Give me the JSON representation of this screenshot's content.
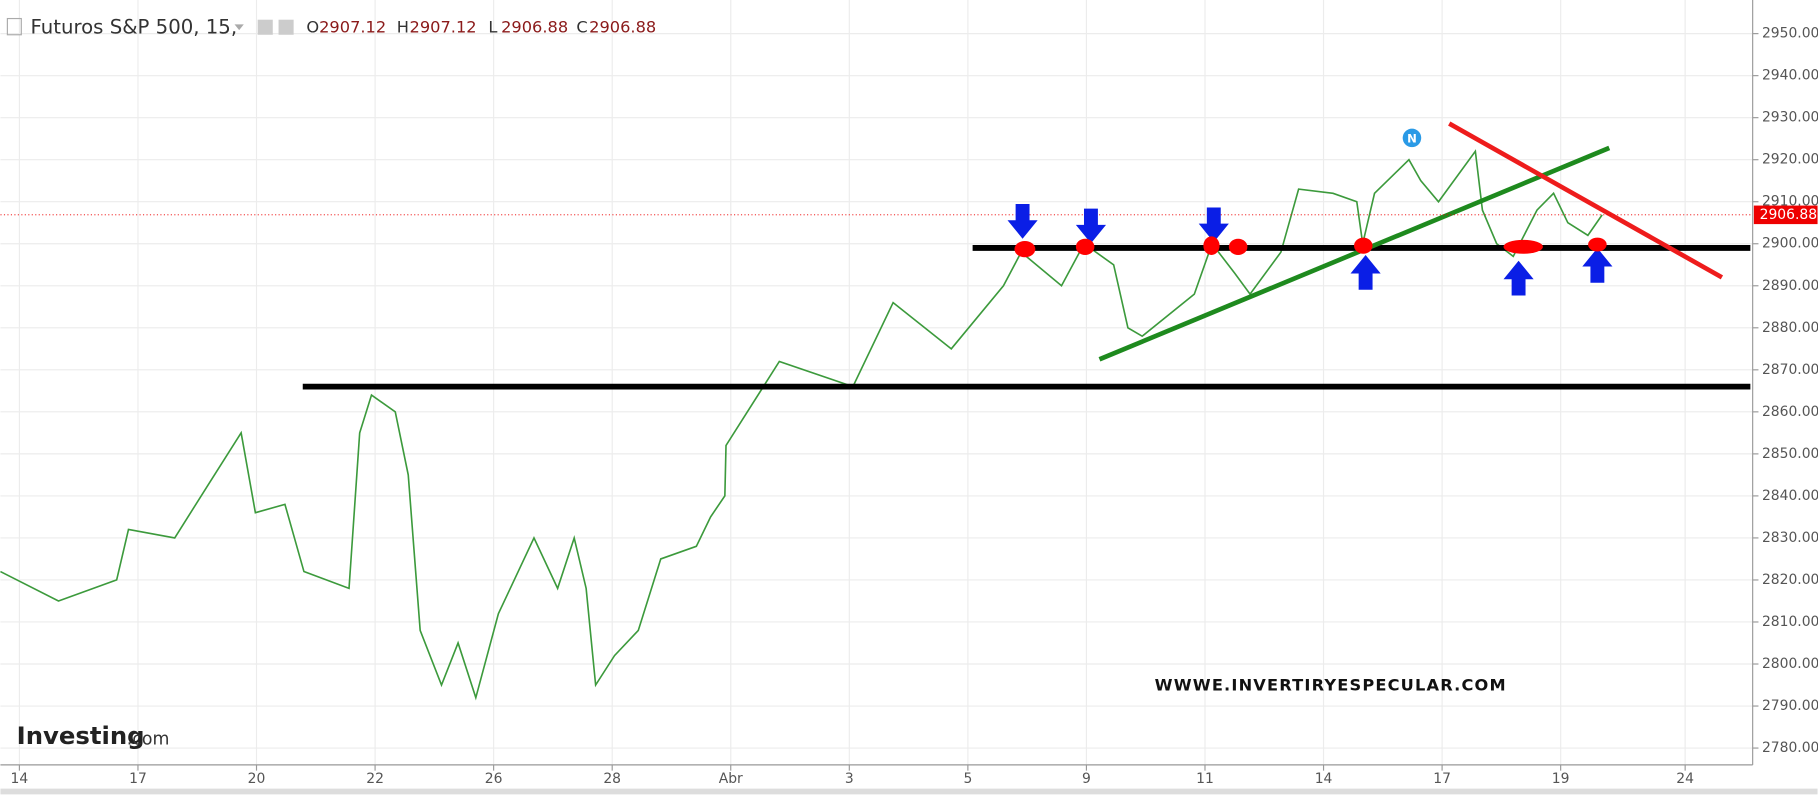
{
  "chart_data": {
    "type": "line",
    "title": "Futuros S&P 500, 15,",
    "ohlc": [
      {
        "label": "O",
        "value": 2907.12
      },
      {
        "label": "H",
        "value": 2907.12
      },
      {
        "label": "L",
        "value": 2906.88
      },
      {
        "label": "C",
        "value": 2906.88
      }
    ],
    "last_price": 2906.88,
    "watermark": "WWWE.INVERTIRYESPECULAR.COM",
    "logo": "Investing",
    "logo_suffix": ".com",
    "color": "#3c9a3c",
    "x": [
      -0.16,
      0.33,
      0.82,
      0.92,
      1.31,
      1.6,
      1.87,
      1.99,
      2.24,
      2.4,
      2.78,
      2.87,
      2.97,
      3.17,
      3.28,
      3.38,
      3.56,
      3.7,
      3.85,
      4.04,
      4.34,
      4.54,
      4.68,
      4.78,
      4.86,
      5.02,
      5.22,
      5.41,
      5.71,
      5.83,
      5.95,
      5.96,
      6.41,
      7.03,
      7.37,
      7.86,
      8.3,
      8.45,
      8.79,
      8.98,
      9.23,
      9.35,
      9.47,
      9.91,
      10.06,
      10.25,
      10.38,
      10.64,
      10.79,
      11.08,
      11.28,
      11.33,
      11.43,
      11.72,
      11.82,
      11.97,
      12.28,
      12.34,
      12.46,
      12.6,
      12.8,
      12.94,
      13.06,
      13.23,
      13.35
    ],
    "values": [
      2822,
      2815,
      2820,
      2832,
      2830,
      2843,
      2855,
      2836,
      2838,
      2822,
      2818,
      2855,
      2864,
      2860,
      2845,
      2808,
      2795,
      2805,
      2792,
      2812,
      2830,
      2818,
      2830,
      2818,
      2795,
      2802,
      2808,
      2825,
      2828,
      2835,
      2840,
      2852,
      2872,
      2866,
      2886,
      2875,
      2890,
      2898,
      2890,
      2900,
      2895,
      2880,
      2878,
      2888,
      2900,
      2893,
      2888,
      2898,
      2913,
      2912,
      2910,
      2900,
      2912,
      2920,
      2915,
      2910,
      2922,
      2908,
      2900,
      2897,
      2908,
      2912,
      2905,
      2902,
      2906.88
    ],
    "xlim": [
      -0.16,
      14.6
    ],
    "ylim": [
      2776,
      2958
    ],
    "xticks": [
      {
        "value": 0,
        "label": "14"
      },
      {
        "value": 1,
        "label": "17"
      },
      {
        "value": 2,
        "label": "20"
      },
      {
        "value": 3,
        "label": "22"
      },
      {
        "value": 4,
        "label": "26"
      },
      {
        "value": 5,
        "label": "28"
      },
      {
        "value": 6,
        "label": "Abr"
      },
      {
        "value": 7,
        "label": "3"
      },
      {
        "value": 8,
        "label": "5"
      },
      {
        "value": 9,
        "label": "9"
      },
      {
        "value": 10,
        "label": "11"
      },
      {
        "value": 11,
        "label": "14"
      },
      {
        "value": 12,
        "label": "17"
      },
      {
        "value": 13,
        "label": "19"
      },
      {
        "value": 14.05,
        "label": "24"
      }
    ],
    "yticks": [
      {
        "value": 2780,
        "label": "2780.00"
      },
      {
        "value": 2790,
        "label": "2790.00"
      },
      {
        "value": 2800,
        "label": "2800.00"
      },
      {
        "value": 2810,
        "label": "2810.00"
      },
      {
        "value": 2820,
        "label": "2820.00"
      },
      {
        "value": 2830,
        "label": "2830.00"
      },
      {
        "value": 2840,
        "label": "2840.00"
      },
      {
        "value": 2850,
        "label": "2850.00"
      },
      {
        "value": 2860,
        "label": "2860.00"
      },
      {
        "value": 2870,
        "label": "2870.00"
      },
      {
        "value": 2880,
        "label": "2880.00"
      },
      {
        "value": 2890,
        "label": "2890.00"
      },
      {
        "value": 2900,
        "label": "2900.00"
      },
      {
        "value": 2910,
        "label": "2910.00"
      },
      {
        "value": 2920,
        "label": "2920.00"
      },
      {
        "value": 2930,
        "label": "2930.00"
      },
      {
        "value": 2940,
        "label": "2940.00"
      },
      {
        "value": 2950,
        "label": "2950.00"
      }
    ],
    "grid": true,
    "levels": [
      {
        "value": 2899,
        "x": [
          8.04,
          14.6
        ],
        "color": "#000000"
      },
      {
        "value": 2866,
        "x": [
          2.39,
          14.6
        ],
        "color": "#000000"
      }
    ],
    "trendlines": [
      {
        "x": [
          9.11,
          13.41
        ],
        "y": [
          2872.5,
          2922.8
        ],
        "color": "#1e8a1e"
      },
      {
        "x": [
          12.06,
          14.36
        ],
        "y": [
          2928.6,
          2892
        ],
        "color": "#ee1c1c"
      }
    ]
  }
}
